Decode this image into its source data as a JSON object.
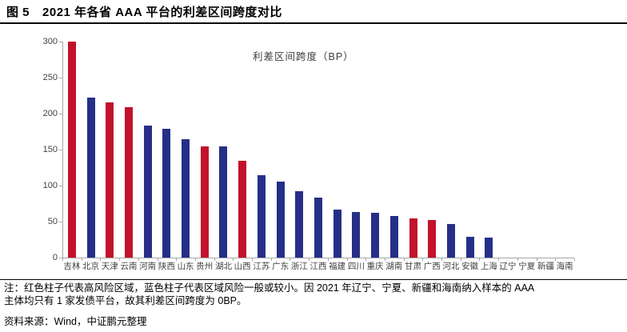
{
  "title": {
    "prefix": "图 5",
    "text": "2021 年各省 AAA 平台的利差区间跨度对比"
  },
  "chart_data": {
    "type": "bar",
    "title": "利差区间跨度（BP）",
    "categories": [
      "吉林",
      "北京",
      "天津",
      "云南",
      "河南",
      "陕西",
      "山东",
      "贵州",
      "湖北",
      "山西",
      "江苏",
      "广东",
      "浙江",
      "江西",
      "福建",
      "四川",
      "重庆",
      "湖南",
      "甘肃",
      "广西",
      "河北",
      "安徽",
      "上海",
      "辽宁",
      "宁夏",
      "新疆",
      "海南"
    ],
    "values": [
      300,
      222,
      216,
      209,
      183,
      179,
      164,
      155,
      155,
      135,
      115,
      106,
      92,
      83,
      67,
      63,
      62,
      58,
      54,
      52,
      47,
      29,
      28,
      0,
      0,
      0,
      0
    ],
    "bar_risk": [
      "high",
      "normal",
      "high",
      "high",
      "normal",
      "normal",
      "normal",
      "high",
      "normal",
      "high",
      "normal",
      "normal",
      "normal",
      "normal",
      "normal",
      "normal",
      "normal",
      "normal",
      "high",
      "high",
      "normal",
      "normal",
      "normal",
      "normal",
      "normal",
      "normal",
      "normal"
    ],
    "palette": {
      "high_risk_red": "#c2122c",
      "normal_blue": "#252f87",
      "axis_gray": "#a6a6a6"
    },
    "xlabel": "",
    "ylabel": "",
    "ylim": [
      0,
      300
    ],
    "yticks": [
      0,
      50,
      100,
      150,
      200,
      250,
      300
    ],
    "grid": "off",
    "legend_position": "top-center-inside"
  },
  "notes": [
    "注：红色柱子代表高风险区域，蓝色柱子代表区域风险一般或较小。因 2021 年辽宁、宁夏、新疆和海南纳入样本的 AAA",
    "主体均只有 1 家发债平台，故其利差区间跨度为 0BP。",
    "资料来源：Wind，中证鹏元整理"
  ]
}
